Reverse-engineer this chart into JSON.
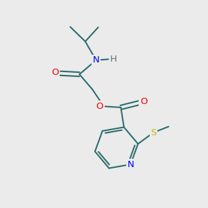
{
  "bg_color": "#ebebeb",
  "bond_color": "#2d6e6e",
  "N_color": "#0000ee",
  "O_color": "#ee0000",
  "S_color": "#bbbb00",
  "H_color": "#607070",
  "figsize": [
    3.0,
    3.0
  ],
  "dpi": 100,
  "xlim": [
    0,
    10
  ],
  "ylim": [
    0,
    10
  ]
}
